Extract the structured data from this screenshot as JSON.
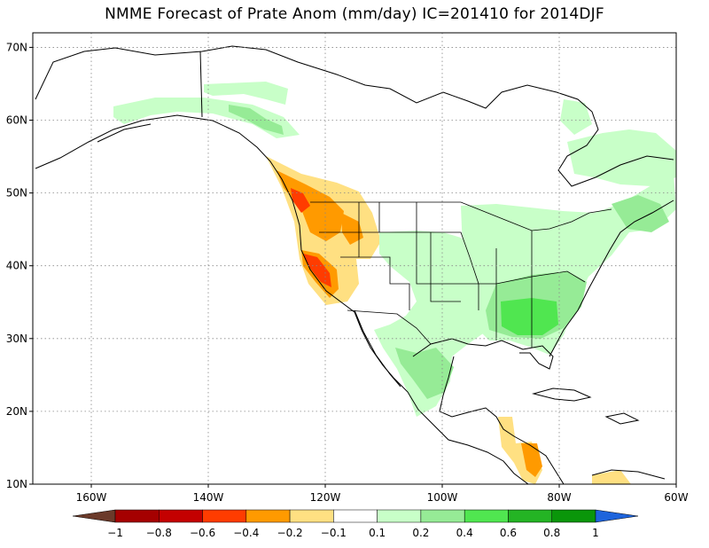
{
  "title": "NMME Forecast of Prate Anom (mm/day) IC=201410 for 2014DJF",
  "map": {
    "lon_range": [
      -170,
      -60
    ],
    "lat_range": [
      10,
      72
    ],
    "lat_ticks": [
      {
        "value": 70,
        "label": "70N"
      },
      {
        "value": 60,
        "label": "60N"
      },
      {
        "value": 50,
        "label": "50N"
      },
      {
        "value": 40,
        "label": "40N"
      },
      {
        "value": 30,
        "label": "30N"
      },
      {
        "value": 20,
        "label": "20N"
      },
      {
        "value": 10,
        "label": "10N"
      }
    ],
    "lon_ticks": [
      {
        "value": -160,
        "label": "160W"
      },
      {
        "value": -140,
        "label": "140W"
      },
      {
        "value": -120,
        "label": "120W"
      },
      {
        "value": -100,
        "label": "100W"
      },
      {
        "value": -80,
        "label": "80W"
      },
      {
        "value": -60,
        "label": "60W"
      }
    ],
    "gridlines": "dotted"
  },
  "colorbar": {
    "bins": [
      {
        "color": "#6b3a2a"
      },
      {
        "color": "#a50000"
      },
      {
        "color": "#c40000"
      },
      {
        "color": "#ff3c00"
      },
      {
        "color": "#ff9a00"
      },
      {
        "color": "#ffe082"
      },
      {
        "color": "#ffffff"
      },
      {
        "color": "#c8ffc8"
      },
      {
        "color": "#96eb96"
      },
      {
        "color": "#50e650"
      },
      {
        "color": "#24b424"
      },
      {
        "color": "#0a960a"
      },
      {
        "color": "#1e64dc"
      }
    ],
    "labels": [
      "−1",
      "−0.8",
      "−0.6",
      "−0.4",
      "−0.2",
      "−0.1",
      "0.1",
      "0.2",
      "0.4",
      "0.6",
      "0.8",
      "1"
    ]
  }
}
